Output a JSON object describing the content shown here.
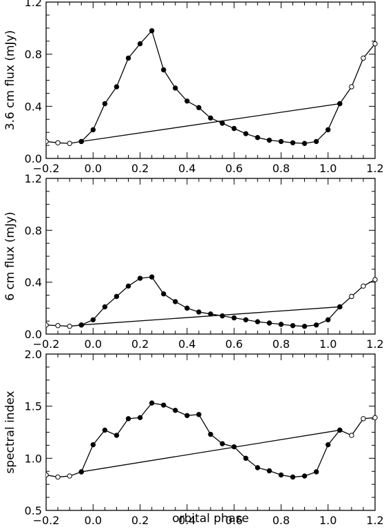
{
  "chart_data": [
    {
      "type": "line",
      "ylabel": "3.6 cm flux (mJy)",
      "xlabel": "",
      "xlim": [
        -0.2,
        1.2
      ],
      "ylim": [
        0.0,
        1.2
      ],
      "xticks": [
        "-0.2",
        "0.0",
        "0.2",
        "0.4",
        "0.6",
        "0.8",
        "1.0",
        "1.2"
      ],
      "yticks": [
        "0.0",
        "0.4",
        "0.8",
        "1.2"
      ],
      "series": [
        {
          "marker": "open-circle",
          "x": [
            -0.2,
            -0.15,
            -0.1,
            -0.05,
            1.05,
            1.1,
            1.15,
            1.2
          ],
          "values": [
            0.13,
            0.12,
            0.115,
            0.13,
            0.42,
            0.55,
            0.77,
            0.88
          ]
        },
        {
          "marker": "filled-circle",
          "x": [
            -0.05,
            0.0,
            0.05,
            0.1,
            0.15,
            0.2,
            0.25,
            0.3,
            0.35,
            0.4,
            0.45,
            0.5,
            0.55,
            0.6,
            0.65,
            0.7,
            0.75,
            0.8,
            0.85,
            0.9,
            0.95,
            1.0,
            1.05
          ],
          "values": [
            0.13,
            0.22,
            0.42,
            0.55,
            0.77,
            0.88,
            0.98,
            0.68,
            0.54,
            0.44,
            0.39,
            0.31,
            0.27,
            0.23,
            0.19,
            0.16,
            0.14,
            0.13,
            0.12,
            0.115,
            0.13,
            0.22,
            0.42
          ]
        }
      ]
    },
    {
      "type": "line",
      "ylabel": "6 cm flux (mJy)",
      "xlabel": "",
      "xlim": [
        -0.2,
        1.2
      ],
      "ylim": [
        0.0,
        1.2
      ],
      "xticks": [
        "-0.2",
        "0.0",
        "0.2",
        "0.4",
        "0.6",
        "0.8",
        "1.0",
        "1.2"
      ],
      "yticks": [
        "0.0",
        "0.4",
        "0.8",
        "1.2"
      ],
      "series": [
        {
          "marker": "open-circle",
          "x": [
            -0.2,
            -0.15,
            -0.1,
            -0.05,
            1.05,
            1.1,
            1.15,
            1.2
          ],
          "values": [
            0.07,
            0.065,
            0.06,
            0.07,
            0.21,
            0.29,
            0.37,
            0.42
          ]
        },
        {
          "marker": "filled-circle",
          "x": [
            -0.05,
            0.0,
            0.05,
            0.1,
            0.15,
            0.2,
            0.25,
            0.3,
            0.35,
            0.4,
            0.45,
            0.5,
            0.55,
            0.6,
            0.65,
            0.7,
            0.75,
            0.8,
            0.85,
            0.9,
            0.95,
            1.0,
            1.05
          ],
          "values": [
            0.07,
            0.11,
            0.21,
            0.29,
            0.37,
            0.43,
            0.44,
            0.31,
            0.25,
            0.2,
            0.17,
            0.155,
            0.14,
            0.125,
            0.11,
            0.095,
            0.085,
            0.075,
            0.065,
            0.06,
            0.07,
            0.11,
            0.21
          ]
        }
      ]
    },
    {
      "type": "line",
      "ylabel": "spectral index",
      "xlabel": "orbital phase",
      "xlim": [
        -0.2,
        1.2
      ],
      "ylim": [
        0.5,
        2.0
      ],
      "xticks": [
        "-0.2",
        "0.0",
        "0.2",
        "0.4",
        "0.6",
        "0.8",
        "1.0",
        "1.2"
      ],
      "yticks": [
        "0.5",
        "1.0",
        "1.5",
        "2.0"
      ],
      "series": [
        {
          "marker": "open-circle",
          "x": [
            -0.2,
            -0.15,
            -0.1,
            -0.05,
            1.05,
            1.1,
            1.15,
            1.2
          ],
          "values": [
            0.84,
            0.82,
            0.83,
            0.87,
            1.27,
            1.22,
            1.38,
            1.39
          ]
        },
        {
          "marker": "filled-circle",
          "x": [
            -0.05,
            0.0,
            0.05,
            0.1,
            0.15,
            0.2,
            0.25,
            0.3,
            0.35,
            0.4,
            0.45,
            0.5,
            0.55,
            0.6,
            0.65,
            0.7,
            0.75,
            0.8,
            0.85,
            0.9,
            0.95,
            1.0,
            1.05
          ],
          "values": [
            0.87,
            1.13,
            1.27,
            1.22,
            1.38,
            1.39,
            1.53,
            1.51,
            1.46,
            1.41,
            1.42,
            1.23,
            1.14,
            1.11,
            1.0,
            0.91,
            0.88,
            0.84,
            0.82,
            0.83,
            0.87,
            1.13,
            1.27
          ]
        }
      ]
    }
  ]
}
